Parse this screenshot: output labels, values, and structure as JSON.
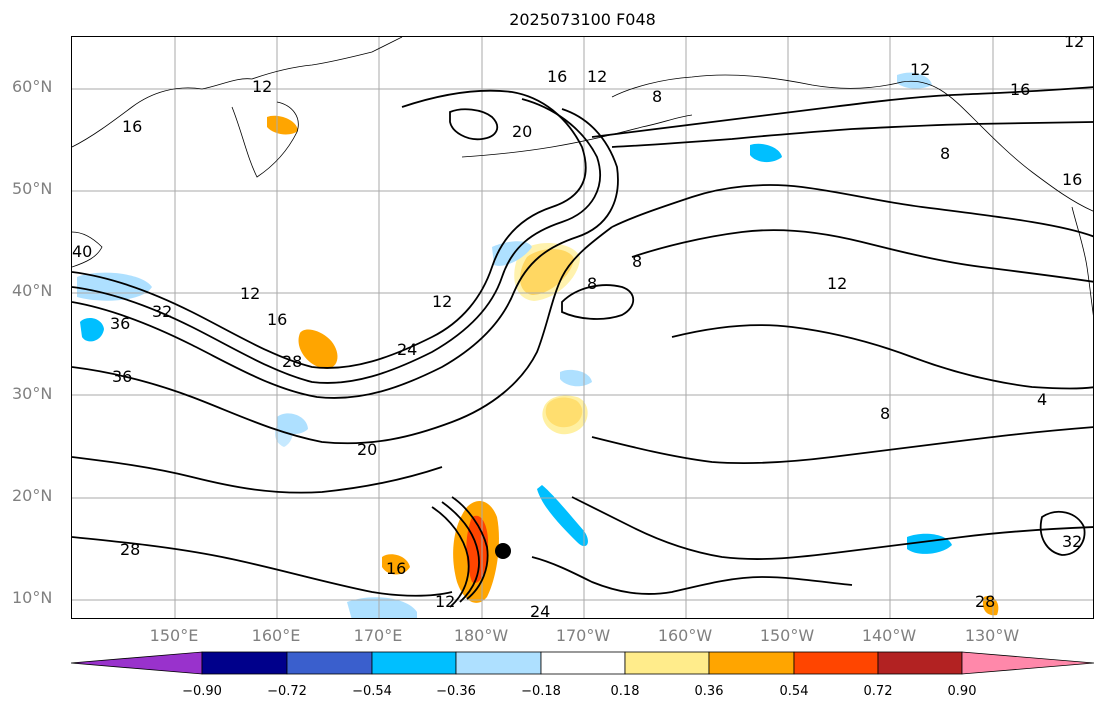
{
  "title": "2025073100 F048",
  "lat_labels": [
    "60°N",
    "50°N",
    "40°N",
    "30°N",
    "20°N",
    "10°N"
  ],
  "lon_labels": [
    "150°E",
    "160°E",
    "170°E",
    "180°W",
    "170°W",
    "160°W",
    "150°W",
    "140°W",
    "130°W"
  ],
  "contour_labels": [
    "12",
    "16",
    "12",
    "8",
    "12",
    "16",
    "20",
    "16",
    "16",
    "8",
    "12",
    "8",
    "40",
    "12",
    "16",
    "32",
    "36",
    "36",
    "28",
    "24",
    "12",
    "8",
    "8",
    "4",
    "20",
    "12",
    "16",
    "12",
    "28",
    "24",
    "32",
    "28"
  ],
  "colorbar": {
    "ticks": [
      "−0.90",
      "−0.72",
      "−0.54",
      "−0.36",
      "−0.18",
      "0.18",
      "0.36",
      "0.54",
      "0.72",
      "0.90"
    ],
    "colors": [
      "#9932cc",
      "#00008b",
      "#3a5fcd",
      "#00bfff",
      "#aee0ff",
      "#ffffff",
      "#ffec8b",
      "#ffa500",
      "#ff4500",
      "#b22222",
      "#ff88aa"
    ]
  },
  "storm_marker": {
    "lat": 15,
    "lon": -178.5
  }
}
